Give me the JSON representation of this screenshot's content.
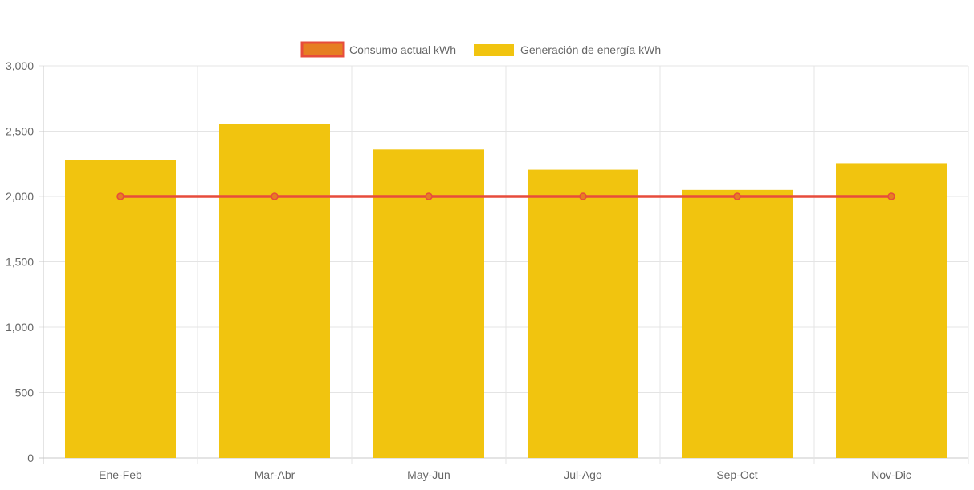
{
  "chart_data": {
    "type": "bar",
    "categories": [
      "Ene-Feb",
      "Mar-Abr",
      "May-Jun",
      "Jul-Ago",
      "Sep-Oct",
      "Nov-Dic"
    ],
    "series": [
      {
        "name": "Consumo actual kWh",
        "type": "line",
        "values": [
          2000,
          2000,
          2000,
          2000,
          2000,
          2000
        ],
        "color": "#e74c3c",
        "point_fill": "#e67e22"
      },
      {
        "name": "Generación de energía kWh",
        "type": "bar",
        "values": [
          2280,
          2555,
          2360,
          2205,
          2050,
          2255
        ],
        "color": "#f1c40f"
      }
    ],
    "legend_position": "top",
    "ylim": [
      0,
      3000
    ],
    "yticks": [
      0,
      500,
      1000,
      1500,
      2000,
      2500,
      3000
    ],
    "ytick_labels": [
      "0",
      "500",
      "1,000",
      "1,500",
      "2,000",
      "2,500",
      "3,000"
    ],
    "grid": true
  }
}
